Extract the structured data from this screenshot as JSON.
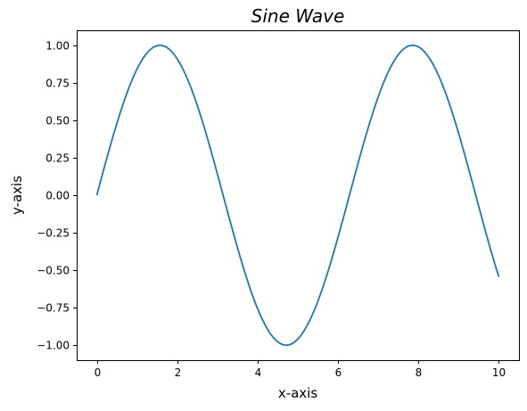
{
  "chart_data": {
    "type": "line",
    "title": "Sine Wave",
    "xlabel": "x-axis",
    "ylabel": "y-axis",
    "xlim": [
      -0.5,
      10.5
    ],
    "ylim": [
      -1.1,
      1.1
    ],
    "grid": false,
    "x_ticks": [
      0,
      2,
      4,
      6,
      8,
      10
    ],
    "x_tick_labels": [
      "0",
      "2",
      "4",
      "6",
      "8",
      "10"
    ],
    "y_ticks": [
      -1.0,
      -0.75,
      -0.5,
      -0.25,
      0.0,
      0.25,
      0.5,
      0.75,
      1.0
    ],
    "y_tick_labels": [
      "−1.00",
      "−0.75",
      "−0.50",
      "−0.25",
      "0.00",
      "0.25",
      "0.50",
      "0.75",
      "1.00"
    ],
    "series": [
      {
        "color": "#1f77b4",
        "function": "sin(x)",
        "x_start": 0,
        "x_end": 10,
        "x": [
          0,
          0.5,
          1,
          1.5708,
          2,
          2.5,
          3,
          3.5,
          4,
          4.7124,
          5,
          5.5,
          6,
          6.5,
          7,
          7.854,
          8.5,
          9,
          9.5,
          10
        ],
        "values": [
          0.0,
          0.479,
          0.841,
          1.0,
          0.909,
          0.598,
          0.141,
          -0.351,
          -0.757,
          -1.0,
          -0.959,
          -0.706,
          -0.279,
          0.215,
          0.657,
          1.0,
          0.798,
          0.412,
          -0.075,
          -0.544
        ]
      }
    ]
  }
}
